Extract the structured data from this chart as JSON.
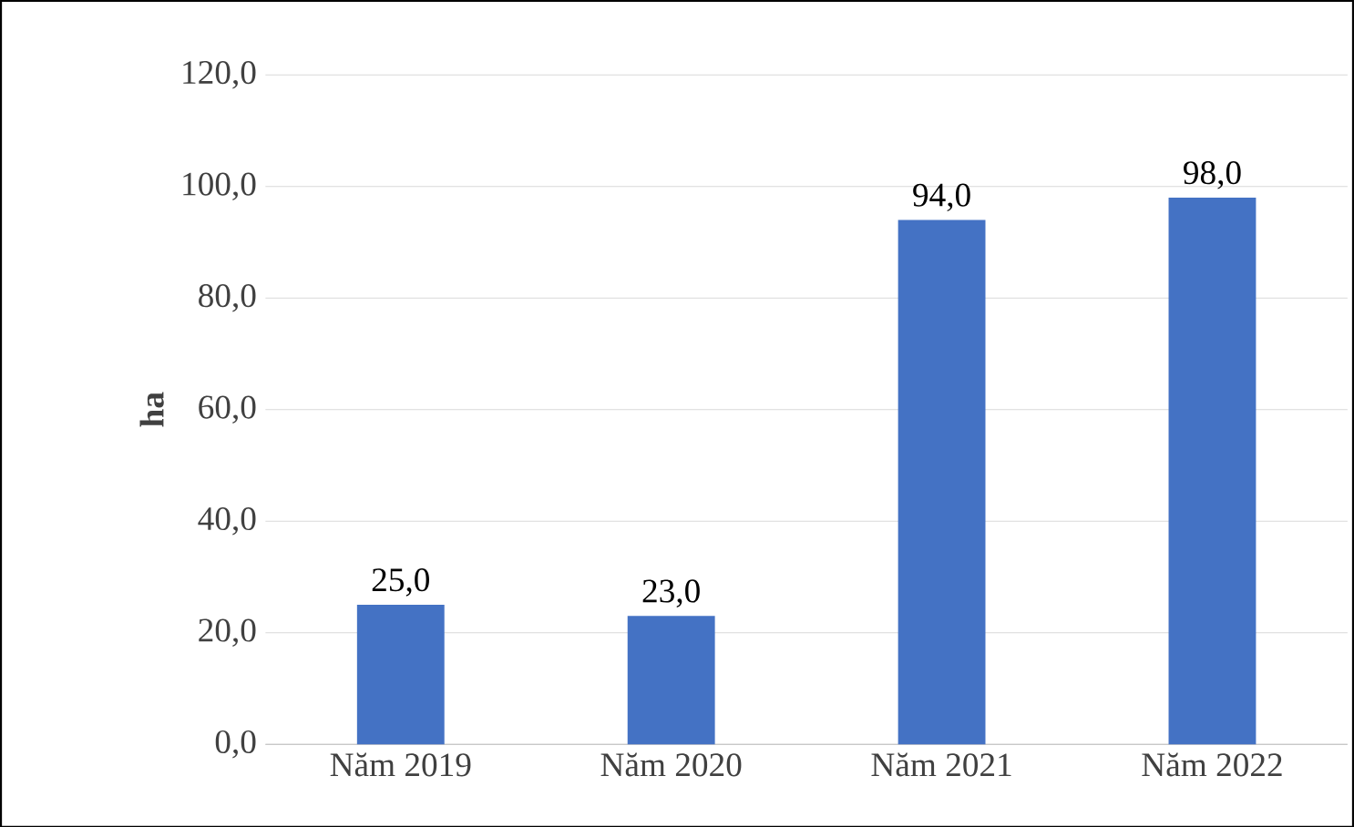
{
  "chart_data": {
    "type": "bar",
    "ylabel": "ha",
    "categories": [
      "Năm 2019",
      "Năm 2020",
      "Năm 2021",
      "Năm 2022"
    ],
    "values": [
      25,
      23,
      94,
      98
    ],
    "value_labels": [
      "25,0",
      "23,0",
      "94,0",
      "98,0"
    ],
    "color": "#4472c4",
    "ylim": [
      0,
      120
    ],
    "yticks": [
      {
        "value": 0,
        "label": "0,0"
      },
      {
        "value": 20,
        "label": "20,0"
      },
      {
        "value": 40,
        "label": "40,0"
      },
      {
        "value": 60,
        "label": "60,0"
      },
      {
        "value": 80,
        "label": "80,0"
      },
      {
        "value": 100,
        "label": "100,0"
      },
      {
        "value": 120,
        "label": "120,0"
      }
    ],
    "grid": "y"
  }
}
